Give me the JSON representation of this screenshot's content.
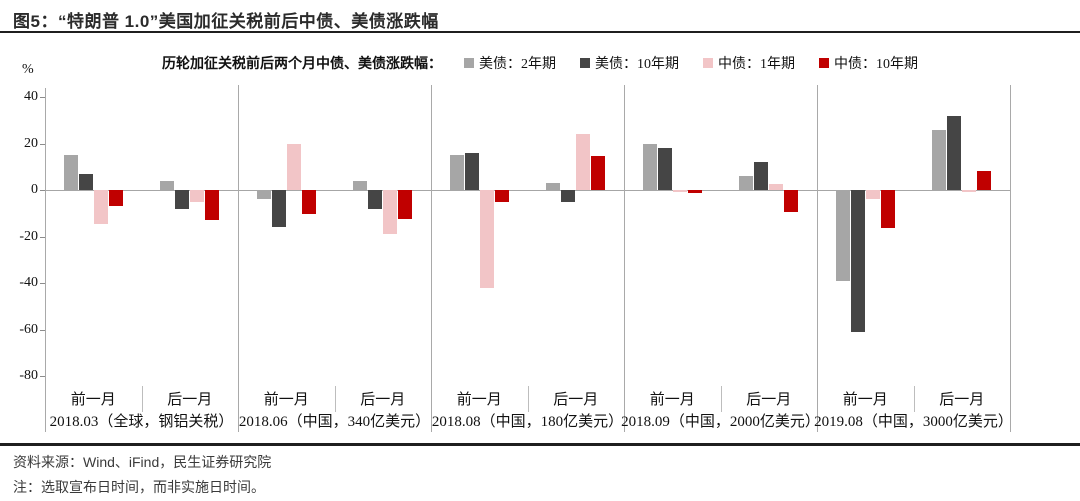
{
  "header": {
    "title": "图5：“特朗普 1.0”美国加征关税前后中债、美债涨跌幅"
  },
  "footer": {
    "source": "资料来源：Wind、iFind，民生证券研究院",
    "note": "注：选取宣布日时间，而非实施日时间。"
  },
  "chart_data": {
    "type": "bar",
    "title": "历轮加征关税前后两个月中债、美债涨跌幅：",
    "ylabel": "%",
    "ylim": [
      -80,
      40
    ],
    "yticks": [
      40,
      20,
      0,
      -20,
      -40,
      -60,
      -80
    ],
    "grid": false,
    "legend_position": "top",
    "series": [
      {
        "name": "美债：2年期",
        "color": "#a6a6a6"
      },
      {
        "name": "美债：10年期",
        "color": "#454545"
      },
      {
        "name": "中债：1年期",
        "color": "#f2c5c7"
      },
      {
        "name": "中债：10年期",
        "color": "#c00000"
      }
    ],
    "panels": [
      {
        "label": "2018.03（全球，钢铝关税）",
        "groups": [
          {
            "label": "前一月",
            "values": [
              15,
              7,
              -14.5,
              -7
            ]
          },
          {
            "label": "后一月",
            "values": [
              4,
              -8,
              -5,
              -13
            ]
          }
        ]
      },
      {
        "label": "2018.06（中国，340亿美元）",
        "groups": [
          {
            "label": "前一月",
            "values": [
              -4,
              -16,
              20,
              -10.5
            ]
          },
          {
            "label": "后一月",
            "values": [
              4,
              -8,
              -19,
              -12.5
            ]
          }
        ]
      },
      {
        "label": "2018.08（中国，180亿美元）",
        "groups": [
          {
            "label": "前一月",
            "values": [
              15,
              16,
              -42,
              -5
            ]
          },
          {
            "label": "后一月",
            "values": [
              3,
              -5,
              24,
              14.5
            ]
          }
        ]
      },
      {
        "label": "2018.09（中国，2000亿美元）",
        "groups": [
          {
            "label": "前一月",
            "values": [
              20,
              18,
              -1,
              -1.5
            ]
          },
          {
            "label": "后一月",
            "values": [
              6,
              12,
              2.5,
              -9.5
            ]
          }
        ]
      },
      {
        "label": "2019.08（中国，3000亿美元）",
        "groups": [
          {
            "label": "前一月",
            "values": [
              -39,
              -61,
              -4,
              -16.5
            ]
          },
          {
            "label": "后一月",
            "values": [
              26,
              32,
              -1,
              8
            ]
          }
        ]
      }
    ]
  }
}
